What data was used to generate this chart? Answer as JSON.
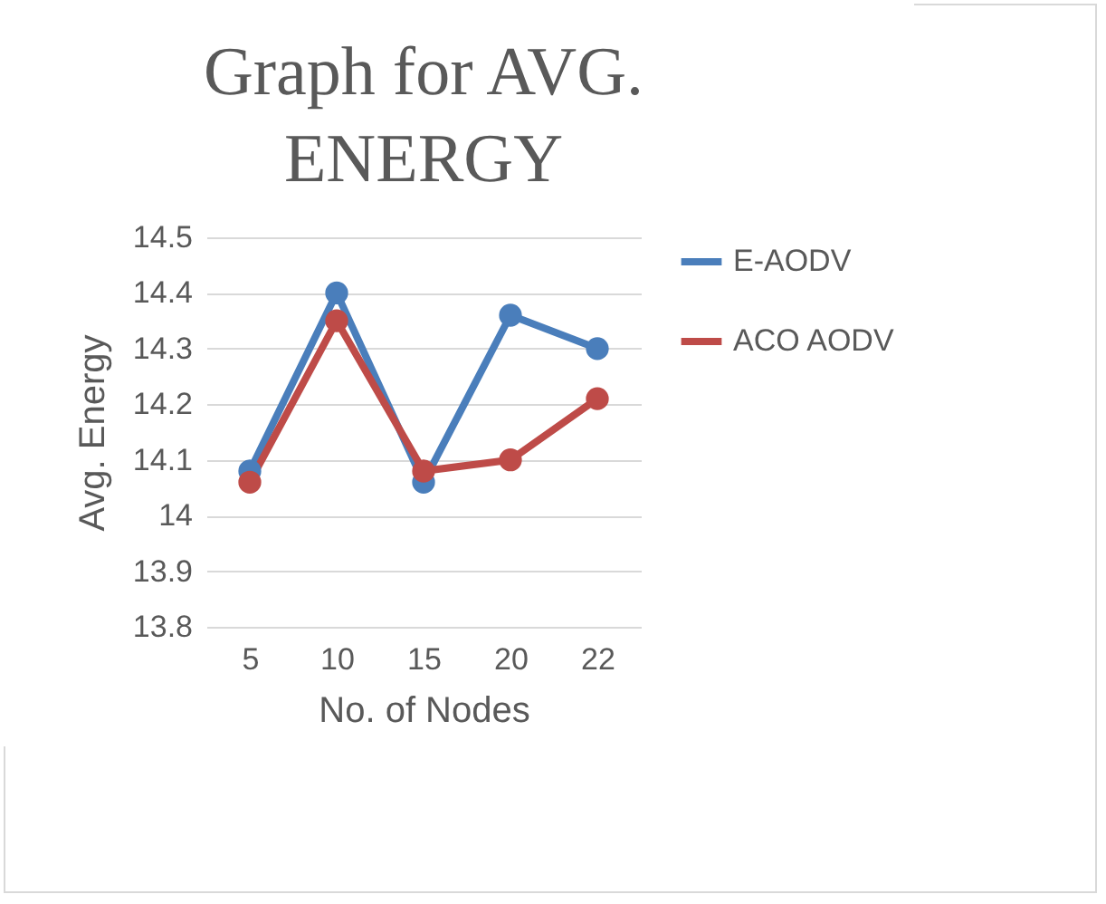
{
  "chart_data": {
    "type": "line",
    "title": "Graph for AVG. ENERGY",
    "xlabel": "No. of Nodes",
    "ylabel": "Avg. Energy",
    "categories": [
      "5",
      "10",
      "15",
      "20",
      "22"
    ],
    "series": [
      {
        "name": "E-AODV",
        "color": "#4a7ebb",
        "values": [
          14.08,
          14.4,
          14.06,
          14.36,
          14.3
        ]
      },
      {
        "name": "ACO AODV",
        "color": "#be4b48",
        "values": [
          14.06,
          14.35,
          14.08,
          14.1,
          14.21
        ]
      }
    ],
    "ylim": [
      13.8,
      14.5
    ],
    "yticks": [
      13.8,
      13.9,
      14,
      14.1,
      14.2,
      14.3,
      14.4,
      14.5
    ],
    "grid": "y",
    "legend": "right",
    "marker": "circle",
    "line_style": "solid"
  }
}
